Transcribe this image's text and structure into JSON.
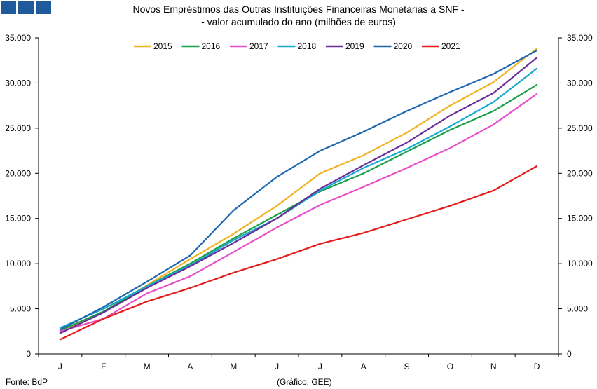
{
  "header": {
    "title_line1": "Novos Empréstimos das Outras Instituições Financeiras Monetárias a SNF -",
    "title_line2": "- valor acumulado do ano (milhões de euros)"
  },
  "footer": {
    "source": "Fonte: BdP",
    "credit": "(Gráfico: GEE)"
  },
  "chart_data": {
    "type": "line",
    "title": "Novos Empréstimos das Outras Instituições Financeiras Monetárias a SNF - - valor acumulado do ano (milhões de euros)",
    "categories": [
      "J",
      "F",
      "M",
      "A",
      "M",
      "J",
      "J",
      "A",
      "S",
      "O",
      "N",
      "D"
    ],
    "ylim": [
      0,
      35000
    ],
    "y_ticks": [
      0,
      5000,
      10000,
      15000,
      20000,
      25000,
      30000,
      35000
    ],
    "y_tick_labels": [
      "0",
      "5.000",
      "10.000",
      "15.000",
      "20.000",
      "25.000",
      "30.000",
      "35.000"
    ],
    "secondary_axis": true,
    "grid": false,
    "legend_position": "top",
    "series": [
      {
        "name": "2015",
        "color": "#f0b323",
        "values": [
          2400,
          4700,
          7600,
          10500,
          13300,
          16400,
          20000,
          22000,
          24500,
          27500,
          30100,
          33800
        ]
      },
      {
        "name": "2016",
        "color": "#1aa04a",
        "values": [
          2600,
          4700,
          7500,
          10000,
          12800,
          15400,
          18000,
          20000,
          22400,
          24800,
          26900,
          29800
        ]
      },
      {
        "name": "2017",
        "color": "#e94fc8",
        "values": [
          2500,
          3900,
          6700,
          8600,
          11300,
          14000,
          16500,
          18500,
          20600,
          22800,
          25400,
          28800
        ]
      },
      {
        "name": "2018",
        "color": "#1aa9d0",
        "values": [
          2900,
          5000,
          7500,
          9800,
          12600,
          15000,
          18100,
          20600,
          22700,
          25200,
          27900,
          31600
        ]
      },
      {
        "name": "2019",
        "color": "#6a2e9a",
        "values": [
          2300,
          4600,
          7300,
          9700,
          12300,
          15000,
          18300,
          20900,
          23400,
          26400,
          28900,
          32800
        ]
      },
      {
        "name": "2020",
        "color": "#1f68b0",
        "values": [
          2700,
          5200,
          8000,
          10900,
          15900,
          19600,
          22500,
          24600,
          26900,
          29000,
          31000,
          33600
        ]
      },
      {
        "name": "2021",
        "color": "#e31b1b",
        "values": [
          1600,
          3900,
          5800,
          7300,
          9000,
          10500,
          12200,
          13400,
          14900,
          16400,
          18100,
          20800
        ]
      }
    ]
  }
}
